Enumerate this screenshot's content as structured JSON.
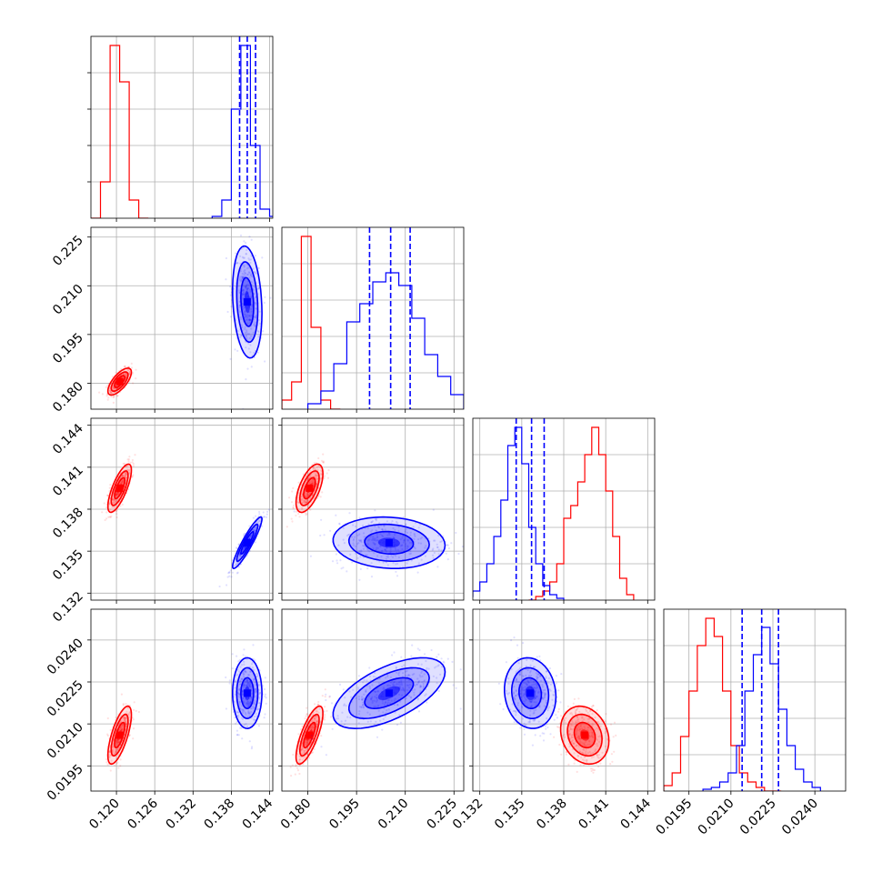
{
  "chart_data": {
    "type": "corner",
    "parameters": 4,
    "series": [
      {
        "name": "",
        "color": "#ff0000",
        "means": [
          0.1205,
          0.1805,
          0.1395,
          0.0206
        ],
        "sigmas": [
          0.0008,
          0.0018,
          0.00075,
          0.00045
        ],
        "correlations": [
          [
            1,
            0.7,
            0.75,
            0.7
          ],
          [
            0.7,
            1,
            0.6,
            0.75
          ],
          [
            0.75,
            0.6,
            1,
            -0.2
          ],
          [
            0.7,
            0.75,
            -0.2,
            1
          ]
        ],
        "histograms": [
          {
            "bins": [
              0.116,
              0.1175,
              0.119,
              0.1205,
              0.122,
              0.1235,
              0.125
            ],
            "counts": [
              0.0,
              0.2,
              0.95,
              0.75,
              0.1,
              0.0
            ]
          },
          {
            "bins": [
              0.172,
              0.175,
              0.178,
              0.181,
              0.184,
              0.187,
              0.19
            ],
            "counts": [
              0.05,
              0.15,
              0.95,
              0.45,
              0.05,
              0.0
            ]
          },
          {
            "bins": [
              0.1355,
              0.136,
              0.1365,
              0.137,
              0.1375,
              0.138,
              0.1385,
              0.139,
              0.1395,
              0.14,
              0.1405,
              0.141,
              0.1415,
              0.142,
              0.1425,
              0.143
            ],
            "counts": [
              0.0,
              0.02,
              0.05,
              0.1,
              0.2,
              0.45,
              0.52,
              0.65,
              0.8,
              0.95,
              0.8,
              0.6,
              0.35,
              0.12,
              0.03
            ]
          },
          {
            "bins": [
              0.0186,
              0.0189,
              0.0192,
              0.0195,
              0.0198,
              0.0201,
              0.0204,
              0.0207,
              0.021,
              0.0213,
              0.0216,
              0.0219,
              0.0222,
              0.0225,
              0.0228
            ],
            "counts": [
              0.03,
              0.1,
              0.3,
              0.55,
              0.8,
              0.95,
              0.85,
              0.55,
              0.25,
              0.1,
              0.05,
              0.02,
              0.0,
              0.0
            ]
          }
        ]
      },
      {
        "name": "",
        "color": "#0000ff",
        "means": [
          0.1405,
          0.205,
          0.1356,
          0.0221
        ],
        "sigmas": [
          0.001,
          0.0075,
          0.0008,
          0.00055
        ],
        "correlations": [
          [
            1,
            -0.2,
            0.92,
            0.0
          ],
          [
            -0.2,
            1,
            -0.1,
            0.6
          ],
          [
            0.92,
            -0.1,
            1,
            -0.1
          ],
          [
            0.0,
            0.6,
            -0.1,
            1
          ]
        ],
        "histograms": [
          {
            "bins": [
              0.135,
              0.1365,
              0.138,
              0.1395,
              0.141,
              0.1425,
              0.144,
              0.1455
            ],
            "counts": [
              0.01,
              0.1,
              0.6,
              0.95,
              0.4,
              0.05,
              0.01
            ]
          },
          {
            "bins": [
              0.18,
              0.184,
              0.188,
              0.192,
              0.196,
              0.2,
              0.204,
              0.208,
              0.212,
              0.216,
              0.22,
              0.224,
              0.228
            ],
            "counts": [
              0.03,
              0.1,
              0.25,
              0.48,
              0.58,
              0.7,
              0.75,
              0.68,
              0.5,
              0.3,
              0.18,
              0.08
            ]
          },
          {
            "bins": [
              0.131,
              0.1315,
              0.132,
              0.1325,
              0.133,
              0.1335,
              0.134,
              0.1345,
              0.135,
              0.1355,
              0.136,
              0.1365,
              0.137,
              0.1375,
              0.138
            ],
            "counts": [
              0.02,
              0.05,
              0.1,
              0.2,
              0.35,
              0.55,
              0.85,
              0.95,
              0.75,
              0.4,
              0.2,
              0.08,
              0.03,
              0.01
            ]
          },
          {
            "bins": [
              0.02,
              0.0203,
              0.0206,
              0.0209,
              0.0212,
              0.0215,
              0.0218,
              0.0221,
              0.0224,
              0.0227,
              0.023,
              0.0233,
              0.0236,
              0.0239,
              0.0242
            ],
            "counts": [
              0.01,
              0.02,
              0.05,
              0.1,
              0.25,
              0.55,
              0.75,
              0.9,
              0.7,
              0.45,
              0.25,
              0.12,
              0.05,
              0.02
            ]
          }
        ],
        "quantile_lines": [
          [
            0.1393,
            0.1405,
            0.1418
          ],
          [
            0.199,
            0.2055,
            0.2115
          ],
          [
            0.1346,
            0.1357,
            0.1366
          ],
          [
            0.0214,
            0.0221,
            0.0227
          ]
        ]
      }
    ],
    "ranges": [
      [
        0.116,
        0.1445
      ],
      [
        0.172,
        0.228
      ],
      [
        0.1315,
        0.1445
      ],
      [
        0.0186,
        0.0251
      ]
    ],
    "ticks": [
      [
        0.12,
        0.126,
        0.132,
        0.138,
        0.144
      ],
      [
        0.18,
        0.195,
        0.21,
        0.225
      ],
      [
        0.132,
        0.135,
        0.138,
        0.141,
        0.144
      ],
      [
        0.0195,
        0.021,
        0.0225,
        0.024
      ]
    ],
    "tick_labels": [
      [
        "0.120",
        "0.126",
        "0.132",
        "0.138",
        "0.144"
      ],
      [
        "0.180",
        "0.195",
        "0.210",
        "0.225"
      ],
      [
        "0.132",
        "0.135",
        "0.138",
        "0.141",
        "0.144"
      ],
      [
        "0.0195",
        "0.0210",
        "0.0225",
        "0.0240"
      ]
    ],
    "grid": true
  }
}
